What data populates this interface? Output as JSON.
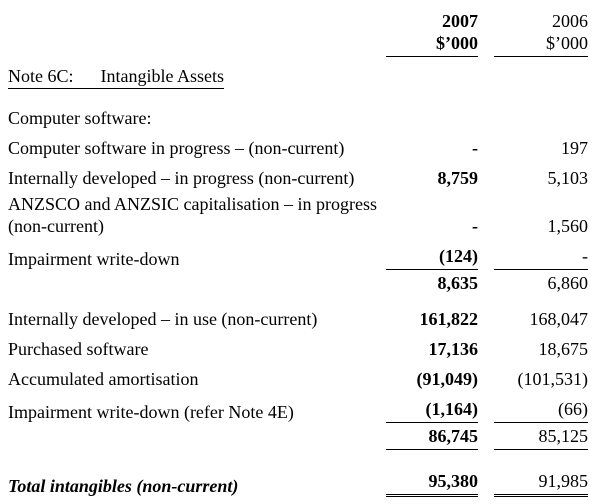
{
  "header": {
    "col1_year": "2007",
    "col1_unit": "$’000",
    "col2_year": "2006",
    "col2_unit": "$’000"
  },
  "note_title": "Note 6C:      Intangible Assets",
  "section_heading": "Computer software:",
  "table": {
    "rows": [
      {
        "label": "Computer software in progress – (non-current)",
        "v2007": "-",
        "v2006": "197"
      },
      {
        "label": "Internally developed – in progress (non-current)",
        "v2007": "8,759",
        "v2006": "5,103"
      },
      {
        "label": "ANZSCO and ANZSIC capitalisation – in progress (non-current)",
        "v2007": "-",
        "v2006": "1,560"
      },
      {
        "label": "Impairment write-down",
        "v2007": "(124)",
        "v2006": "-"
      },
      {
        "label": "",
        "v2007": "8,635",
        "v2006": "6,860"
      },
      {
        "label": "Internally developed – in use (non-current)",
        "v2007": "161,822",
        "v2006": "168,047"
      },
      {
        "label": "Purchased software",
        "v2007": "17,136",
        "v2006": "18,675"
      },
      {
        "label": "Accumulated amortisation",
        "v2007": "(91,049)",
        "v2006": "(101,531)"
      },
      {
        "label": "Impairment write-down (refer Note 4E)",
        "v2007": "(1,164)",
        "v2006": "(66)"
      },
      {
        "label": "",
        "v2007": "86,745",
        "v2006": "85,125"
      },
      {
        "label": "Total intangibles (non-current)",
        "v2007": "95,380",
        "v2006": "91,985"
      }
    ]
  }
}
